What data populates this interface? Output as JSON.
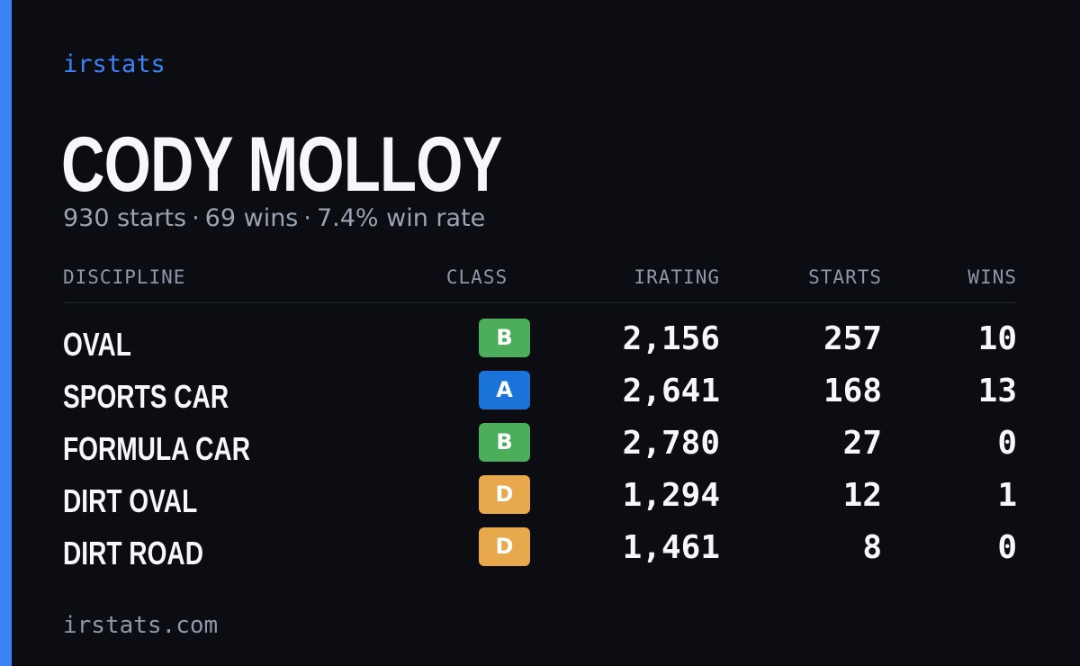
{
  "brand": "irstats",
  "driver": {
    "name": "CODY MOLLOY",
    "starts_text": "930 starts",
    "wins_text": "69 wins",
    "win_rate_text": "7.4% win rate",
    "separator": "·"
  },
  "table": {
    "headers": {
      "discipline": "DISCIPLINE",
      "class": "CLASS",
      "irating": "IRATING",
      "starts": "STARTS",
      "wins": "WINS"
    },
    "rows": [
      {
        "discipline": "OVAL",
        "class": "B",
        "class_color": "#4cae5b",
        "irating": "2,156",
        "starts": "257",
        "wins": "10"
      },
      {
        "discipline": "SPORTS CAR",
        "class": "A",
        "class_color": "#1a73d9",
        "irating": "2,641",
        "starts": "168",
        "wins": "13"
      },
      {
        "discipline": "FORMULA CAR",
        "class": "B",
        "class_color": "#4cae5b",
        "irating": "2,780",
        "starts": "27",
        "wins": "0"
      },
      {
        "discipline": "DIRT OVAL",
        "class": "D",
        "class_color": "#e8a94c",
        "irating": "1,294",
        "starts": "12",
        "wins": "1"
      },
      {
        "discipline": "DIRT ROAD",
        "class": "D",
        "class_color": "#e8a94c",
        "irating": "1,461",
        "starts": "8",
        "wins": "0"
      }
    ]
  },
  "footer": {
    "url": "irstats.com"
  },
  "colors": {
    "accent": "#3b82f6",
    "background": "#0b0d13"
  }
}
